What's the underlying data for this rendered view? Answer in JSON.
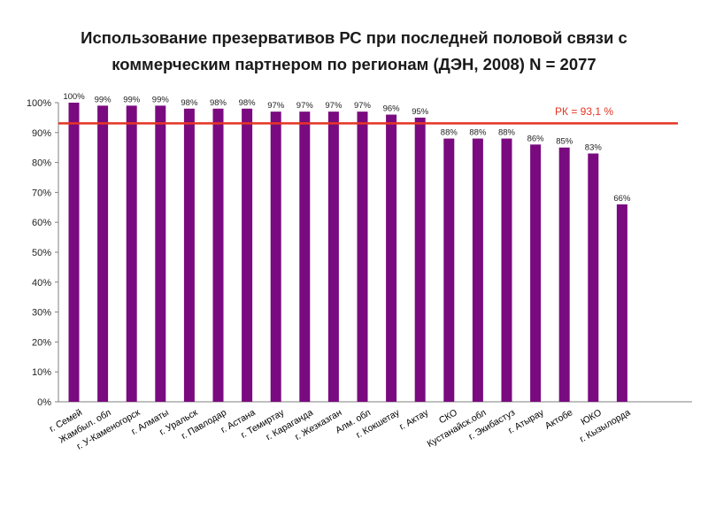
{
  "chart_data": {
    "type": "bar",
    "title_lines": [
      "Использование презервативов РС при последней половой связи с",
      "коммерческим партнером по регионам (ДЭН, 2008) N = 2077"
    ],
    "categories": [
      "г. Семей",
      "Жамбыл. обл",
      "г. У-Каменогорск",
      "г. Алматы",
      "г. Уральск",
      "г. Павлодар",
      "г. Астана",
      "г. Темиртау",
      "г. Караганда",
      "г. Жезказган",
      "Алм. обл",
      "г. Кокшетау",
      "г. Актау",
      "СКО",
      "Кустанайск.обл",
      "г. Экибастуз",
      "г. Атырау",
      "Актобе",
      "ЮКО",
      "г. Кызылорда"
    ],
    "values": [
      100,
      99,
      99,
      99,
      98,
      98,
      98,
      97,
      97,
      97,
      97,
      96,
      95,
      88,
      88,
      88,
      86,
      85,
      83,
      66
    ],
    "data_labels": [
      "100%",
      "99%",
      "99%",
      "99%",
      "98%",
      "98%",
      "98%",
      "97%",
      "97%",
      "97%",
      "97%",
      "96%",
      "95%",
      "88%",
      "88%",
      "88%",
      "86%",
      "85%",
      "83%",
      "66%"
    ],
    "y_ticks": [
      0,
      10,
      20,
      30,
      40,
      50,
      60,
      70,
      80,
      90,
      100
    ],
    "y_tick_labels": [
      "0%",
      "10%",
      "20%",
      "30%",
      "40%",
      "50%",
      "60%",
      "70%",
      "80%",
      "90%",
      "100%"
    ],
    "ylim": [
      0,
      100
    ],
    "xlabel": "",
    "ylabel": "",
    "grid": false,
    "bar_color": "#7a0a7f",
    "reference_line": {
      "value": 93.1,
      "label": "РК = 93,1 %",
      "color": "#e53524"
    }
  }
}
